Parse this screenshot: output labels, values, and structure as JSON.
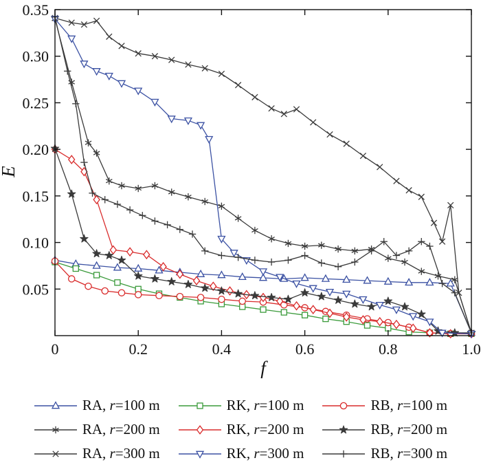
{
  "figure": {
    "background": "#ffffff"
  },
  "chart_data": {
    "type": "line",
    "title": "",
    "xlabel": "f",
    "ylabel": "E",
    "xlim": [
      0,
      1.0
    ],
    "ylim": [
      0,
      0.35
    ],
    "x_ticks": [
      0,
      0.2,
      0.4,
      0.6,
      0.8,
      1.0
    ],
    "x_tick_labels": [
      "0",
      "0.2",
      "0.4",
      "0.6",
      "0.8",
      "1.0"
    ],
    "y_ticks": [
      0.05,
      0.1,
      0.15,
      0.2,
      0.25,
      0.3,
      0.35
    ],
    "y_tick_labels": [
      "0.05",
      "0.10",
      "0.15",
      "0.20",
      "0.25",
      "0.30",
      "0.35"
    ],
    "grid": false,
    "legend_position": "bottom",
    "colors": {
      "blue": "#3b51a3",
      "green": "#3a9a3a",
      "red": "#d92b2b",
      "dark": "#3a3a3a"
    },
    "series": [
      {
        "id": "ra-100",
        "name": "RA, r=100 m",
        "color": "#3b51a3",
        "marker": "triangle-up-open",
        "points": [
          [
            0,
            0.081
          ],
          [
            0.05,
            0.077
          ],
          [
            0.1,
            0.075
          ],
          [
            0.15,
            0.073
          ],
          [
            0.2,
            0.072
          ],
          [
            0.25,
            0.07
          ],
          [
            0.3,
            0.068
          ],
          [
            0.35,
            0.066
          ],
          [
            0.4,
            0.065
          ],
          [
            0.45,
            0.063
          ],
          [
            0.5,
            0.062
          ],
          [
            0.55,
            0.061
          ],
          [
            0.6,
            0.062
          ],
          [
            0.65,
            0.061
          ],
          [
            0.7,
            0.06
          ],
          [
            0.75,
            0.059
          ],
          [
            0.8,
            0.058
          ],
          [
            0.85,
            0.057
          ],
          [
            0.9,
            0.057
          ],
          [
            0.95,
            0.056
          ],
          [
            1,
            0.003
          ]
        ]
      },
      {
        "id": "rk-100",
        "name": "RK, r=100 m",
        "color": "#3a9a3a",
        "marker": "square-open",
        "points": [
          [
            0,
            0.079
          ],
          [
            0.05,
            0.072
          ],
          [
            0.1,
            0.065
          ],
          [
            0.15,
            0.057
          ],
          [
            0.2,
            0.05
          ],
          [
            0.25,
            0.045
          ],
          [
            0.3,
            0.041
          ],
          [
            0.35,
            0.037
          ],
          [
            0.4,
            0.034
          ],
          [
            0.45,
            0.031
          ],
          [
            0.5,
            0.028
          ],
          [
            0.55,
            0.025
          ],
          [
            0.6,
            0.022
          ],
          [
            0.65,
            0.018
          ],
          [
            0.7,
            0.015
          ],
          [
            0.75,
            0.011
          ],
          [
            0.8,
            0.008
          ],
          [
            0.85,
            0.004
          ],
          [
            0.9,
            0.003
          ],
          [
            0.95,
            0.002
          ],
          [
            1,
            0.002
          ]
        ]
      },
      {
        "id": "rb-100",
        "name": "RB, r=100 m",
        "color": "#d92b2b",
        "marker": "circle-open",
        "points": [
          [
            0,
            0.08
          ],
          [
            0.04,
            0.061
          ],
          [
            0.08,
            0.053
          ],
          [
            0.12,
            0.048
          ],
          [
            0.16,
            0.046
          ],
          [
            0.2,
            0.044
          ],
          [
            0.25,
            0.043
          ],
          [
            0.3,
            0.042
          ],
          [
            0.35,
            0.041
          ],
          [
            0.4,
            0.039
          ],
          [
            0.45,
            0.037
          ],
          [
            0.5,
            0.036
          ],
          [
            0.55,
            0.033
          ],
          [
            0.6,
            0.03
          ],
          [
            0.65,
            0.026
          ],
          [
            0.7,
            0.022
          ],
          [
            0.75,
            0.018
          ],
          [
            0.8,
            0.014
          ],
          [
            0.85,
            0.009
          ],
          [
            0.9,
            0.003
          ],
          [
            0.95,
            0.002
          ],
          [
            1,
            0.002
          ]
        ]
      },
      {
        "id": "ra-200",
        "name": "RA, r=200 m",
        "color": "#3a3a3a",
        "marker": "asterisk",
        "points": [
          [
            0,
            0.34
          ],
          [
            0.04,
            0.272
          ],
          [
            0.08,
            0.207
          ],
          [
            0.1,
            0.196
          ],
          [
            0.13,
            0.166
          ],
          [
            0.16,
            0.161
          ],
          [
            0.2,
            0.158
          ],
          [
            0.24,
            0.161
          ],
          [
            0.28,
            0.154
          ],
          [
            0.32,
            0.149
          ],
          [
            0.36,
            0.144
          ],
          [
            0.4,
            0.139
          ],
          [
            0.44,
            0.126
          ],
          [
            0.48,
            0.113
          ],
          [
            0.52,
            0.104
          ],
          [
            0.56,
            0.099
          ],
          [
            0.6,
            0.096
          ],
          [
            0.64,
            0.097
          ],
          [
            0.68,
            0.093
          ],
          [
            0.72,
            0.091
          ],
          [
            0.76,
            0.093
          ],
          [
            0.8,
            0.083
          ],
          [
            0.84,
            0.079
          ],
          [
            0.88,
            0.069
          ],
          [
            0.92,
            0.064
          ],
          [
            0.96,
            0.06
          ],
          [
            1,
            0.003
          ]
        ]
      },
      {
        "id": "rk-200",
        "name": "RK, r=200 m",
        "color": "#d92b2b",
        "marker": "diamond-open",
        "points": [
          [
            0,
            0.2
          ],
          [
            0.04,
            0.189
          ],
          [
            0.07,
            0.176
          ],
          [
            0.1,
            0.146
          ],
          [
            0.14,
            0.092
          ],
          [
            0.18,
            0.09
          ],
          [
            0.22,
            0.087
          ],
          [
            0.26,
            0.074
          ],
          [
            0.3,
            0.066
          ],
          [
            0.34,
            0.059
          ],
          [
            0.38,
            0.053
          ],
          [
            0.42,
            0.048
          ],
          [
            0.46,
            0.044
          ],
          [
            0.5,
            0.041
          ],
          [
            0.54,
            0.037
          ],
          [
            0.58,
            0.032
          ],
          [
            0.62,
            0.028
          ],
          [
            0.66,
            0.024
          ],
          [
            0.7,
            0.02
          ],
          [
            0.74,
            0.017
          ],
          [
            0.78,
            0.015
          ],
          [
            0.82,
            0.012
          ],
          [
            0.86,
            0.008
          ],
          [
            0.9,
            0.003
          ],
          [
            0.95,
            0.002
          ],
          [
            1,
            0.002
          ]
        ]
      },
      {
        "id": "rb-200",
        "name": "RB, r=200 m",
        "color": "#3a3a3a",
        "marker": "star-filled",
        "points": [
          [
            0,
            0.201
          ],
          [
            0.04,
            0.152
          ],
          [
            0.07,
            0.104
          ],
          [
            0.1,
            0.088
          ],
          [
            0.13,
            0.086
          ],
          [
            0.16,
            0.081
          ],
          [
            0.2,
            0.064
          ],
          [
            0.24,
            0.061
          ],
          [
            0.28,
            0.058
          ],
          [
            0.32,
            0.055
          ],
          [
            0.36,
            0.051
          ],
          [
            0.4,
            0.048
          ],
          [
            0.44,
            0.045
          ],
          [
            0.48,
            0.043
          ],
          [
            0.52,
            0.041
          ],
          [
            0.56,
            0.039
          ],
          [
            0.6,
            0.046
          ],
          [
            0.64,
            0.042
          ],
          [
            0.68,
            0.038
          ],
          [
            0.72,
            0.034
          ],
          [
            0.76,
            0.031
          ],
          [
            0.8,
            0.037
          ],
          [
            0.84,
            0.031
          ],
          [
            0.88,
            0.023
          ],
          [
            0.92,
            0.005
          ],
          [
            0.96,
            0.003
          ],
          [
            1,
            0.003
          ]
        ]
      },
      {
        "id": "ra-300",
        "name": "RA, r=300 m",
        "color": "#3a3a3a",
        "marker": "x-cross",
        "points": [
          [
            0,
            0.341
          ],
          [
            0.04,
            0.336
          ],
          [
            0.07,
            0.334
          ],
          [
            0.1,
            0.338
          ],
          [
            0.13,
            0.321
          ],
          [
            0.16,
            0.311
          ],
          [
            0.2,
            0.303
          ],
          [
            0.24,
            0.3
          ],
          [
            0.28,
            0.296
          ],
          [
            0.32,
            0.291
          ],
          [
            0.36,
            0.287
          ],
          [
            0.4,
            0.281
          ],
          [
            0.44,
            0.269
          ],
          [
            0.48,
            0.256
          ],
          [
            0.52,
            0.244
          ],
          [
            0.55,
            0.238
          ],
          [
            0.58,
            0.243
          ],
          [
            0.62,
            0.229
          ],
          [
            0.66,
            0.216
          ],
          [
            0.7,
            0.206
          ],
          [
            0.74,
            0.193
          ],
          [
            0.78,
            0.181
          ],
          [
            0.82,
            0.166
          ],
          [
            0.85,
            0.156
          ],
          [
            0.88,
            0.149
          ],
          [
            0.91,
            0.121
          ],
          [
            0.93,
            0.101
          ],
          [
            0.95,
            0.14
          ],
          [
            0.97,
            0.046
          ],
          [
            1,
            0.003
          ]
        ]
      },
      {
        "id": "rk-300",
        "name": "RK, r=300 m",
        "color": "#3b51a3",
        "marker": "triangle-down-open",
        "points": [
          [
            0,
            0.34
          ],
          [
            0.04,
            0.319
          ],
          [
            0.07,
            0.292
          ],
          [
            0.1,
            0.284
          ],
          [
            0.13,
            0.279
          ],
          [
            0.16,
            0.271
          ],
          [
            0.2,
            0.263
          ],
          [
            0.24,
            0.251
          ],
          [
            0.28,
            0.233
          ],
          [
            0.32,
            0.231
          ],
          [
            0.35,
            0.226
          ],
          [
            0.37,
            0.211
          ],
          [
            0.4,
            0.104
          ],
          [
            0.43,
            0.089
          ],
          [
            0.46,
            0.081
          ],
          [
            0.5,
            0.069
          ],
          [
            0.54,
            0.063
          ],
          [
            0.58,
            0.056
          ],
          [
            0.62,
            0.051
          ],
          [
            0.66,
            0.047
          ],
          [
            0.7,
            0.045
          ],
          [
            0.74,
            0.039
          ],
          [
            0.78,
            0.033
          ],
          [
            0.82,
            0.028
          ],
          [
            0.86,
            0.021
          ],
          [
            0.9,
            0.015
          ],
          [
            0.93,
            0.003
          ],
          [
            1,
            0.002
          ]
        ]
      },
      {
        "id": "rb-300",
        "name": "RB, r=300 m",
        "color": "#3a3a3a",
        "marker": "plus",
        "points": [
          [
            0,
            0.342
          ],
          [
            0.03,
            0.284
          ],
          [
            0.05,
            0.249
          ],
          [
            0.07,
            0.186
          ],
          [
            0.09,
            0.153
          ],
          [
            0.12,
            0.146
          ],
          [
            0.15,
            0.141
          ],
          [
            0.18,
            0.135
          ],
          [
            0.21,
            0.129
          ],
          [
            0.24,
            0.123
          ],
          [
            0.27,
            0.119
          ],
          [
            0.3,
            0.114
          ],
          [
            0.33,
            0.109
          ],
          [
            0.36,
            0.091
          ],
          [
            0.4,
            0.086
          ],
          [
            0.44,
            0.084
          ],
          [
            0.48,
            0.081
          ],
          [
            0.52,
            0.079
          ],
          [
            0.56,
            0.081
          ],
          [
            0.6,
            0.086
          ],
          [
            0.64,
            0.078
          ],
          [
            0.68,
            0.074
          ],
          [
            0.72,
            0.079
          ],
          [
            0.76,
            0.091
          ],
          [
            0.79,
            0.101
          ],
          [
            0.82,
            0.086
          ],
          [
            0.85,
            0.091
          ],
          [
            0.88,
            0.101
          ],
          [
            0.9,
            0.096
          ],
          [
            0.93,
            0.056
          ],
          [
            0.96,
            0.046
          ],
          [
            1,
            0.003
          ]
        ]
      }
    ]
  }
}
